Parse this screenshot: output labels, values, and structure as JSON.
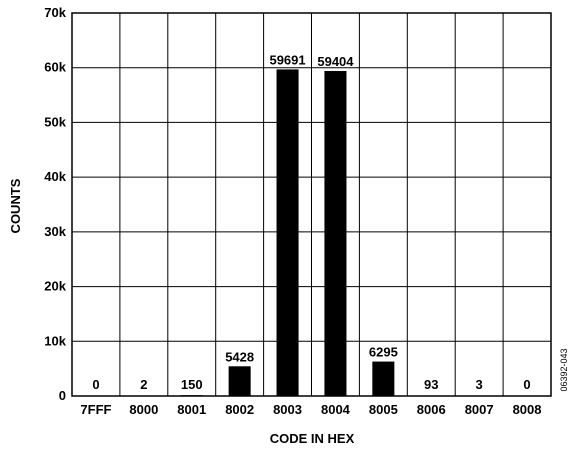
{
  "chart_data": {
    "type": "bar",
    "categories": [
      "7FFF",
      "8000",
      "8001",
      "8002",
      "8003",
      "8004",
      "8005",
      "8006",
      "8007",
      "8008"
    ],
    "values": [
      0,
      2,
      150,
      5428,
      59691,
      59404,
      6295,
      93,
      3,
      0
    ],
    "value_labels": [
      "0",
      "2",
      "150",
      "5428",
      "59691",
      "59404",
      "6295",
      "93",
      "3",
      "0"
    ],
    "title": "",
    "xlabel": "CODE IN HEX",
    "ylabel": "COUNTS",
    "ylim": [
      0,
      70000
    ],
    "yticks": [
      0,
      10000,
      20000,
      30000,
      40000,
      50000,
      60000,
      70000
    ],
    "ytick_labels": [
      "0",
      "10k",
      "20k",
      "30k",
      "40k",
      "50k",
      "60k",
      "70k"
    ],
    "grid": true,
    "bar_color": "#000000"
  },
  "figure_code": "06392-043"
}
